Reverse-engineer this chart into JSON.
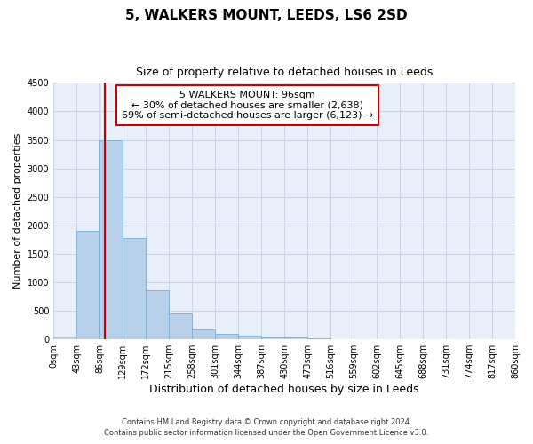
{
  "title": "5, WALKERS MOUNT, LEEDS, LS6 2SD",
  "subtitle": "Size of property relative to detached houses in Leeds",
  "xlabel": "Distribution of detached houses by size in Leeds",
  "ylabel": "Number of detached properties",
  "bar_color": "#b8d0ea",
  "bar_edge_color": "#7aafd4",
  "vline_color": "#cc0000",
  "vline_x": 96,
  "annotation_text": "5 WALKERS MOUNT: 96sqm\n← 30% of detached houses are smaller (2,638)\n69% of semi-detached houses are larger (6,123) →",
  "annotation_box_facecolor": "#ffffff",
  "annotation_box_edgecolor": "#cc0000",
  "ylim": [
    0,
    4500
  ],
  "yticks": [
    0,
    500,
    1000,
    1500,
    2000,
    2500,
    3000,
    3500,
    4000,
    4500
  ],
  "bin_edges": [
    0,
    43,
    86,
    129,
    172,
    215,
    258,
    301,
    344,
    387,
    430,
    473,
    516,
    559,
    602,
    645,
    688,
    731,
    774,
    817,
    860
  ],
  "bar_heights": [
    50,
    1900,
    3500,
    1780,
    860,
    460,
    175,
    90,
    60,
    40,
    30,
    20,
    8,
    4,
    2,
    1,
    1,
    0,
    0,
    0
  ],
  "footer_line1": "Contains HM Land Registry data © Crown copyright and database right 2024.",
  "footer_line2": "Contains public sector information licensed under the Open Government Licence v3.0.",
  "background_color": "#ffffff",
  "plot_bg_color": "#e8eff8",
  "grid_color": "#c8d4e8",
  "title_fontsize": 11,
  "subtitle_fontsize": 9,
  "ylabel_fontsize": 8,
  "xlabel_fontsize": 9,
  "tick_fontsize": 7,
  "footer_fontsize": 6,
  "annot_fontsize": 8
}
